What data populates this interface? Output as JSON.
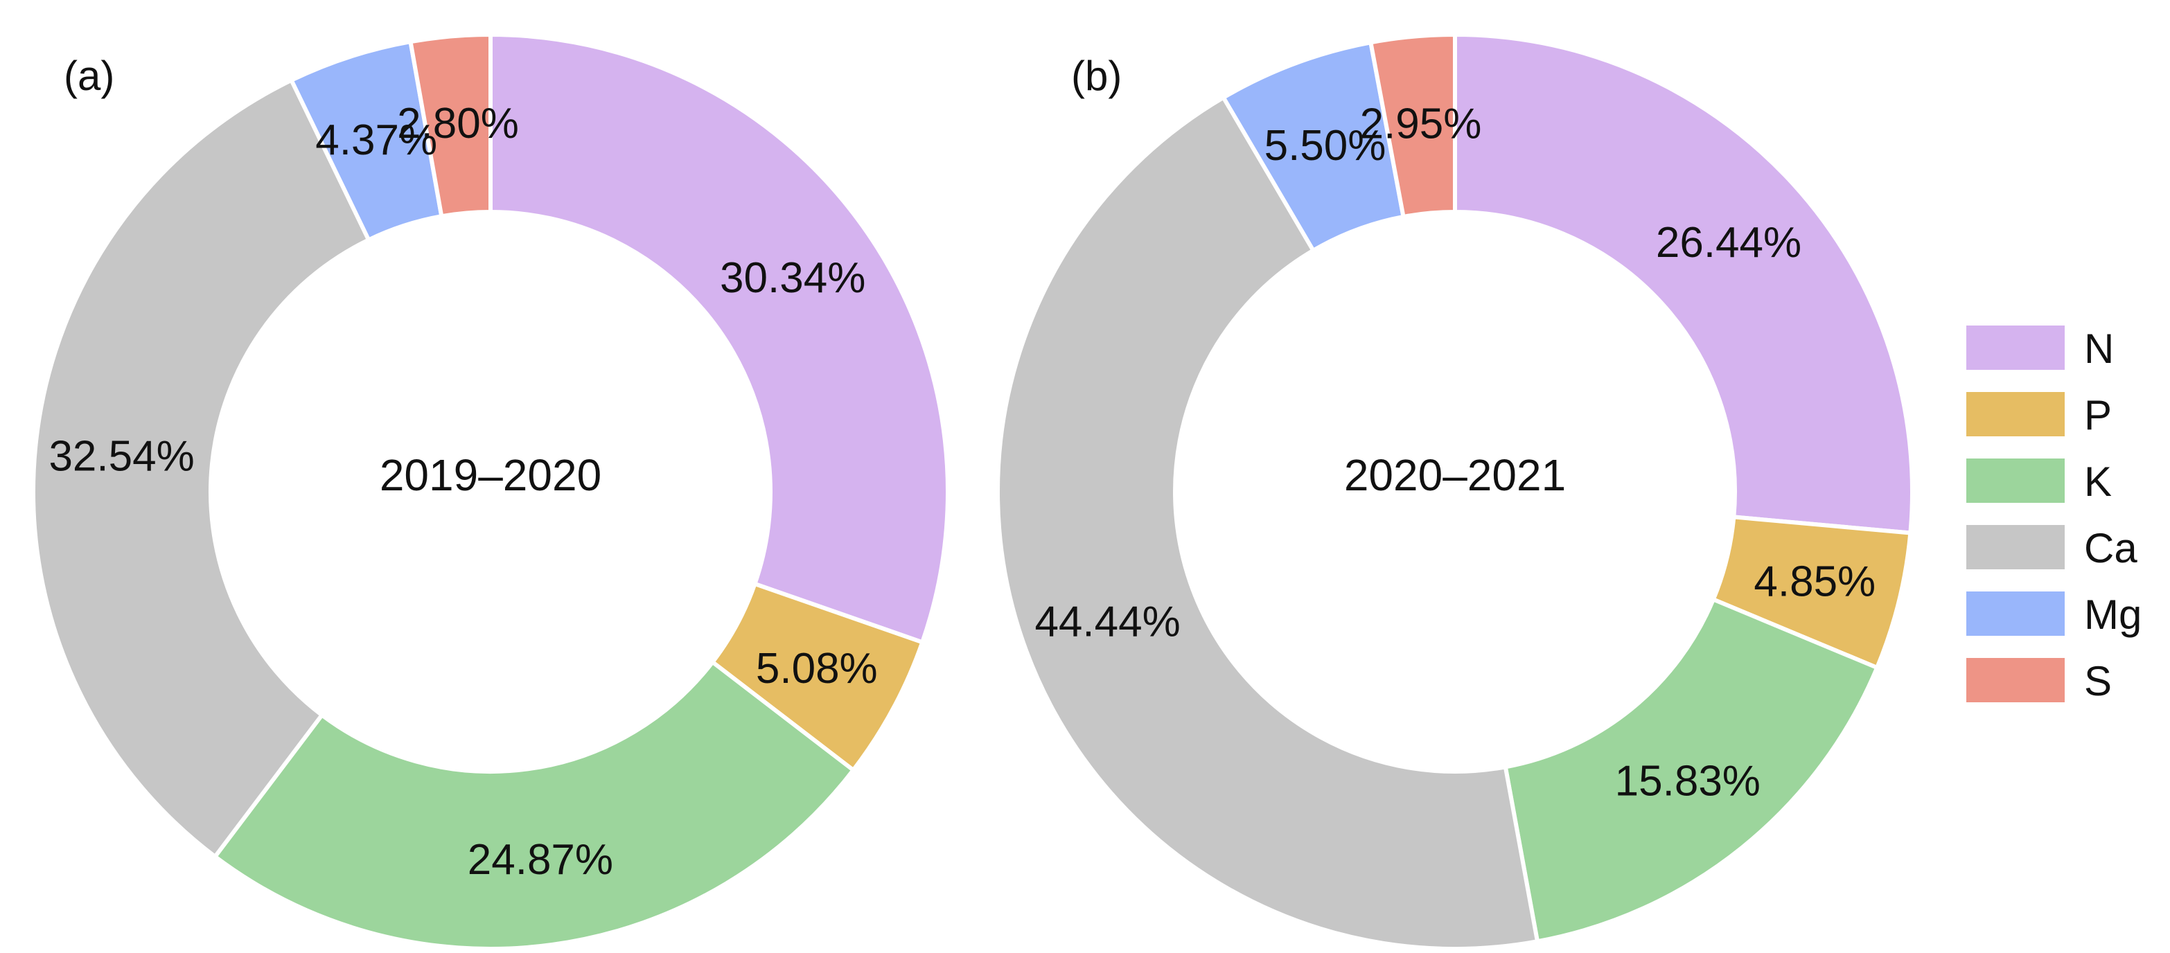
{
  "chart_data": [
    {
      "type": "pie",
      "style": "donut",
      "panel": "(a)",
      "center_text": "2019–2020",
      "categories": [
        "N",
        "P",
        "K",
        "Ca",
        "Mg",
        "S"
      ],
      "values": [
        30.34,
        5.08,
        24.87,
        32.54,
        4.37,
        2.8
      ],
      "labels": [
        "30.34%",
        "5.08%",
        "24.87%",
        "32.54%",
        "4.37%",
        "2.80%"
      ],
      "start": "12 o'clock",
      "direction": "clockwise"
    },
    {
      "type": "pie",
      "style": "donut",
      "panel": "(b)",
      "center_text": "2020–2021",
      "categories": [
        "N",
        "P",
        "K",
        "Ca",
        "Mg",
        "S"
      ],
      "values": [
        26.44,
        4.85,
        15.83,
        44.44,
        5.5,
        2.95
      ],
      "labels": [
        "26.44%",
        "4.85%",
        "15.83%",
        "44.44%",
        "5.50%",
        "2.95%"
      ],
      "start": "12 o'clock",
      "direction": "clockwise"
    }
  ],
  "legend": {
    "placement": "right",
    "items": [
      {
        "label": "N",
        "color": "#d5b3ef"
      },
      {
        "label": "P",
        "color": "#e6bd63"
      },
      {
        "label": "K",
        "color": "#9cd59c"
      },
      {
        "label": "Ca",
        "color": "#c6c6c6"
      },
      {
        "label": "Mg",
        "color": "#99b6fb"
      },
      {
        "label": "S",
        "color": "#ee9486"
      }
    ]
  }
}
